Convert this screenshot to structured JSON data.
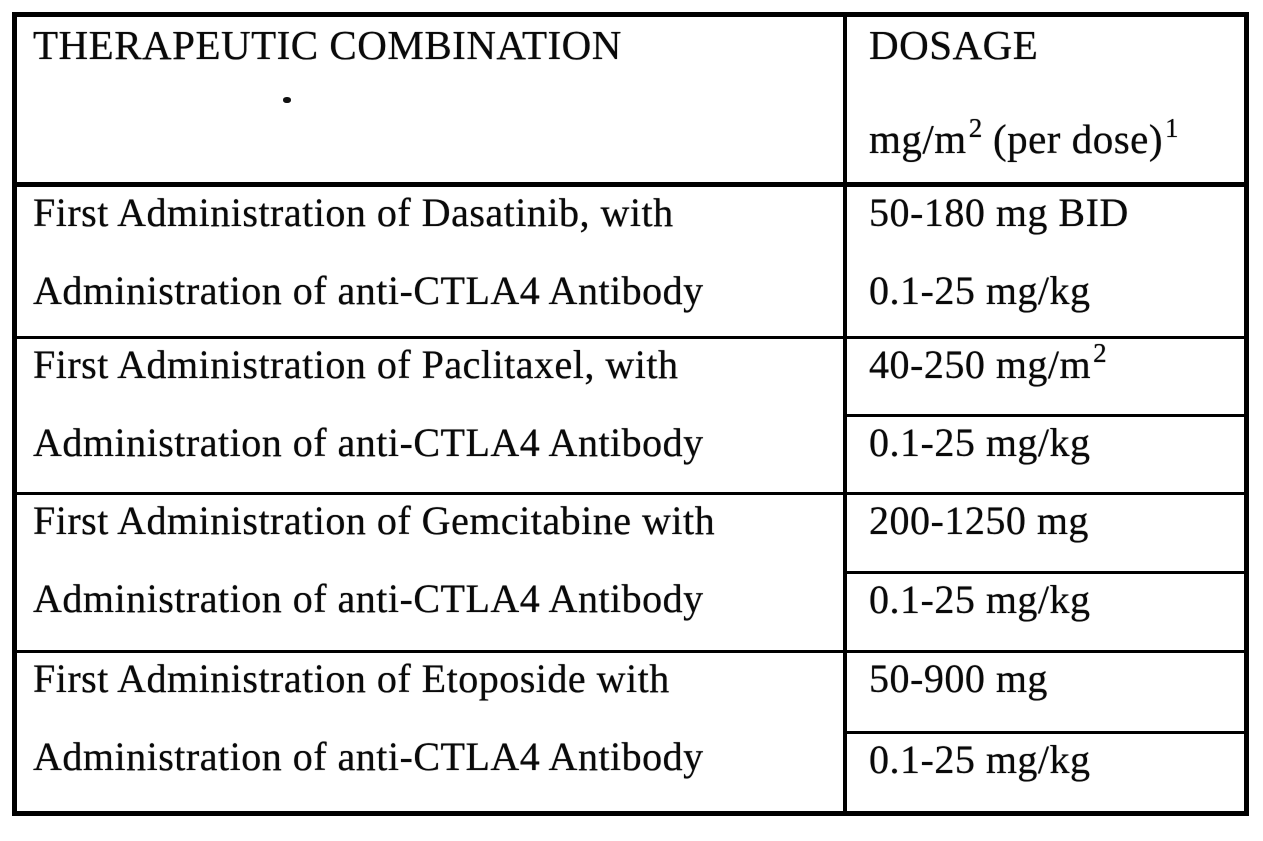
{
  "table": {
    "header": {
      "combination": "THERAPEUTIC COMBINATION",
      "dosage_line1": "DOSAGE",
      "dosage_line2_base": "mg/m",
      "dosage_line2_sup": "2",
      "dosage_line2_mid": " (per dose)",
      "dosage_line2_note_sup": "1"
    },
    "rows": [
      {
        "combination_line1": "First Administration of Dasatinib, with",
        "combination_line2": "Administration of anti-CTLA4 Antibody",
        "dosage_line1": "50-180 mg BID",
        "dosage_line2": "0.1-25 mg/kg"
      },
      {
        "combination_line1": "First Administration of Paclitaxel, with",
        "combination_line2": "Administration of anti-CTLA4 Antibody",
        "dosage_line1": "40-250 mg/m",
        "dosage_line1_sup": "2",
        "dosage_line2": "0.1-25 mg/kg"
      },
      {
        "combination_line1": "First Administration of Gemcitabine with",
        "combination_line2": "Administration of anti-CTLA4 Antibody",
        "dosage_line1": "200-1250 mg",
        "dosage_line2": "0.1-25 mg/kg"
      },
      {
        "combination_line1": "First Administration of Etoposide with",
        "combination_line2": "Administration of anti-CTLA4 Antibody",
        "dosage_line1": "50-900 mg",
        "dosage_line2": "0.1-25 mg/kg"
      }
    ]
  },
  "colors": {
    "ink": "#0a0a0a",
    "paper": "#ffffff"
  }
}
